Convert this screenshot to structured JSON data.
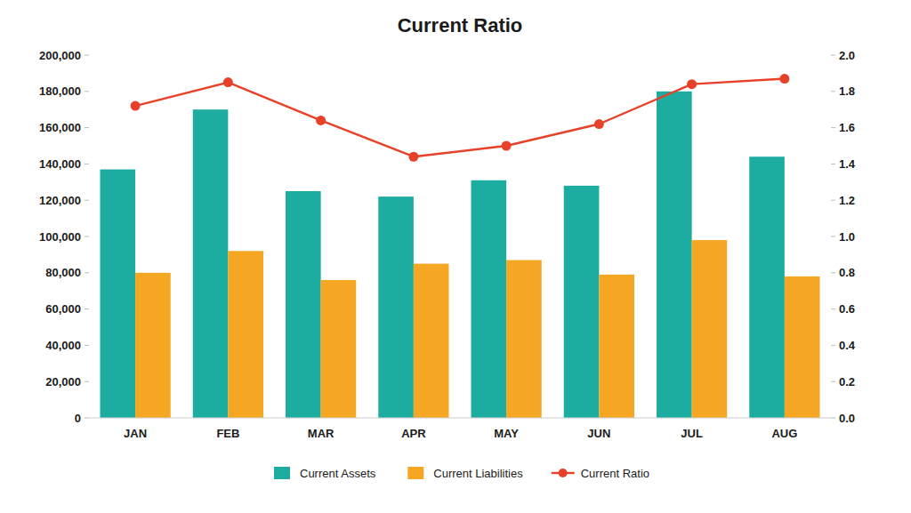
{
  "chart_data": {
    "type": "bar",
    "title": "Current Ratio",
    "categories": [
      "JAN",
      "FEB",
      "MAR",
      "APR",
      "MAY",
      "JUN",
      "JUL",
      "AUG"
    ],
    "series": [
      {
        "name": "Current Assets",
        "color": "#1DADA0",
        "values": [
          137000,
          170000,
          125000,
          122000,
          131000,
          128000,
          180000,
          144000
        ]
      },
      {
        "name": "Current Liabilities",
        "color": "#F5A623",
        "values": [
          80000,
          92000,
          76000,
          85000,
          87000,
          79000,
          98000,
          78000
        ]
      },
      {
        "name": "Current Ratio",
        "color": "#E8412A",
        "type": "line",
        "marker": "circle",
        "axis": "y2",
        "values": [
          1.72,
          1.85,
          1.64,
          1.44,
          1.5,
          1.62,
          1.84,
          1.87
        ]
      }
    ],
    "ylim": [
      0,
      200000
    ],
    "yticks": [
      0,
      {
        "value": 20000,
        "label": "20,000"
      },
      {
        "value": 40000,
        "label": "40,000"
      },
      {
        "value": 60000,
        "label": "60,000"
      },
      {
        "value": 80000,
        "label": "80,000"
      },
      {
        "value": 100000,
        "label": "100,000"
      },
      {
        "value": 120000,
        "label": "120,000"
      },
      {
        "value": 140000,
        "label": "140,000"
      },
      {
        "value": 160000,
        "label": "160,000"
      },
      {
        "value": 180000,
        "label": "180,000"
      },
      {
        "value": 200000,
        "label": "200,000"
      }
    ],
    "y2lim": [
      0.0,
      2.0
    ],
    "y2ticks": [
      {
        "value": 0,
        "label": "0.0"
      },
      0.2,
      0.4,
      0.6,
      0.8,
      {
        "value": 1,
        "label": "1.0"
      },
      1.2,
      1.4,
      1.6,
      1.8,
      {
        "value": 2,
        "label": "2.0"
      }
    ],
    "grid": false,
    "legend": "bottom"
  }
}
